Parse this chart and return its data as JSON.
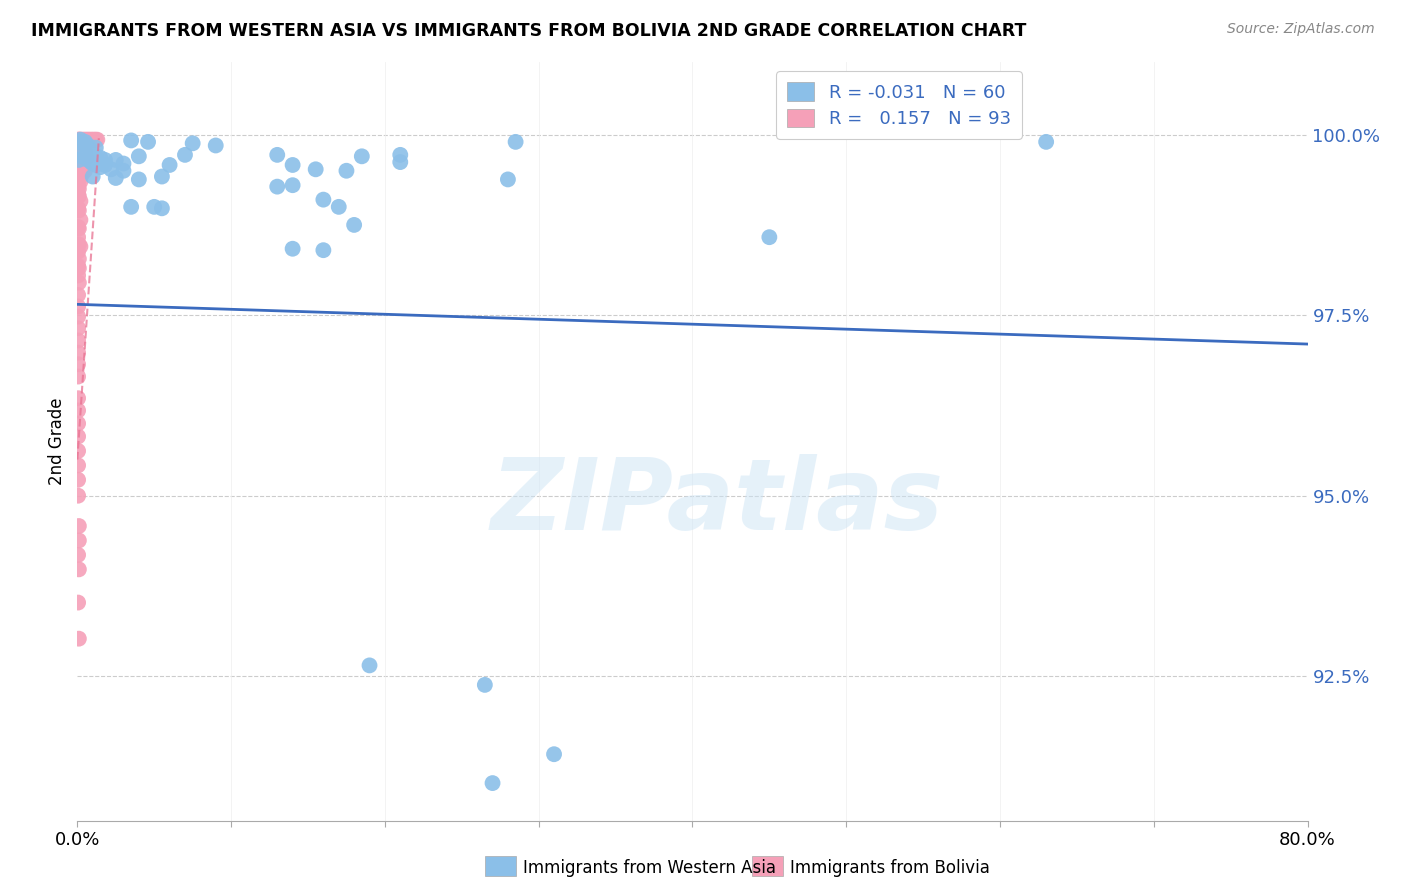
{
  "title": "IMMIGRANTS FROM WESTERN ASIA VS IMMIGRANTS FROM BOLIVIA 2ND GRADE CORRELATION CHART",
  "source": "Source: ZipAtlas.com",
  "ylabel": "2nd Grade",
  "ytick_labels": [
    "92.5%",
    "95.0%",
    "97.5%",
    "100.0%"
  ],
  "ytick_values": [
    0.925,
    0.95,
    0.975,
    1.0
  ],
  "xlim": [
    0.0,
    0.8
  ],
  "ylim": [
    0.905,
    1.01
  ],
  "color_blue": "#8bbfe8",
  "color_pink": "#f5a0b8",
  "trendline_blue_color": "#3b6bbf",
  "trendline_pink_color": "#e87090",
  "watermark_text": "ZIPatlas",
  "blue_points": [
    [
      0.001,
      0.999
    ],
    [
      0.002,
      0.9993
    ],
    [
      0.003,
      0.9988
    ],
    [
      0.005,
      0.999
    ],
    [
      0.007,
      0.9985
    ],
    [
      0.009,
      0.9978
    ],
    [
      0.012,
      0.9982
    ],
    [
      0.035,
      0.9992
    ],
    [
      0.046,
      0.999
    ],
    [
      0.075,
      0.9988
    ],
    [
      0.09,
      0.9985
    ],
    [
      0.285,
      0.999
    ],
    [
      0.63,
      0.999
    ],
    [
      0.001,
      0.9965
    ],
    [
      0.003,
      0.997
    ],
    [
      0.005,
      0.997
    ],
    [
      0.007,
      0.9965
    ],
    [
      0.009,
      0.9962
    ],
    [
      0.012,
      0.997
    ],
    [
      0.015,
      0.9968
    ],
    [
      0.018,
      0.9965
    ],
    [
      0.025,
      0.9965
    ],
    [
      0.03,
      0.996
    ],
    [
      0.04,
      0.997
    ],
    [
      0.01,
      0.996
    ],
    [
      0.012,
      0.9958
    ],
    [
      0.015,
      0.9955
    ],
    [
      0.018,
      0.9958
    ],
    [
      0.022,
      0.9952
    ],
    [
      0.03,
      0.995
    ],
    [
      0.06,
      0.9958
    ],
    [
      0.14,
      0.9958
    ],
    [
      0.155,
      0.9952
    ],
    [
      0.175,
      0.995
    ],
    [
      0.13,
      0.9972
    ],
    [
      0.185,
      0.997
    ],
    [
      0.21,
      0.9972
    ],
    [
      0.21,
      0.9962
    ],
    [
      0.07,
      0.9972
    ],
    [
      0.01,
      0.9942
    ],
    [
      0.025,
      0.994
    ],
    [
      0.04,
      0.9938
    ],
    [
      0.055,
      0.9942
    ],
    [
      0.28,
      0.9938
    ],
    [
      0.035,
      0.99
    ],
    [
      0.05,
      0.99
    ],
    [
      0.055,
      0.9898
    ],
    [
      0.13,
      0.9928
    ],
    [
      0.14,
      0.993
    ],
    [
      0.16,
      0.991
    ],
    [
      0.17,
      0.99
    ],
    [
      0.18,
      0.9875
    ],
    [
      0.14,
      0.9842
    ],
    [
      0.16,
      0.984
    ],
    [
      0.45,
      0.9858
    ],
    [
      0.19,
      0.9265
    ],
    [
      0.265,
      0.9238
    ],
    [
      0.27,
      0.9102
    ],
    [
      0.31,
      0.9142
    ]
  ],
  "pink_points": [
    [
      0.0005,
      0.9993
    ],
    [
      0.001,
      0.9993
    ],
    [
      0.0015,
      0.9993
    ],
    [
      0.002,
      0.9993
    ],
    [
      0.003,
      0.9993
    ],
    [
      0.004,
      0.9993
    ],
    [
      0.005,
      0.9993
    ],
    [
      0.006,
      0.9993
    ],
    [
      0.007,
      0.9993
    ],
    [
      0.008,
      0.9993
    ],
    [
      0.009,
      0.9993
    ],
    [
      0.01,
      0.9993
    ],
    [
      0.011,
      0.9993
    ],
    [
      0.012,
      0.9993
    ],
    [
      0.013,
      0.9993
    ],
    [
      0.001,
      0.9988
    ],
    [
      0.002,
      0.9988
    ],
    [
      0.003,
      0.9985
    ],
    [
      0.004,
      0.9988
    ],
    [
      0.0005,
      0.998
    ],
    [
      0.001,
      0.998
    ],
    [
      0.002,
      0.998
    ],
    [
      0.003,
      0.998
    ],
    [
      0.004,
      0.998
    ],
    [
      0.005,
      0.9978
    ],
    [
      0.0005,
      0.997
    ],
    [
      0.001,
      0.997
    ],
    [
      0.002,
      0.997
    ],
    [
      0.003,
      0.997
    ],
    [
      0.004,
      0.997
    ],
    [
      0.005,
      0.997
    ],
    [
      0.006,
      0.9968
    ],
    [
      0.001,
      0.996
    ],
    [
      0.002,
      0.996
    ],
    [
      0.003,
      0.9958
    ],
    [
      0.004,
      0.9952
    ],
    [
      0.005,
      0.995
    ],
    [
      0.001,
      0.9948
    ],
    [
      0.002,
      0.9948
    ],
    [
      0.003,
      0.9945
    ],
    [
      0.0005,
      0.9938
    ],
    [
      0.001,
      0.9938
    ],
    [
      0.002,
      0.9935
    ],
    [
      0.0005,
      0.9928
    ],
    [
      0.001,
      0.9925
    ],
    [
      0.0005,
      0.9918
    ],
    [
      0.001,
      0.9915
    ],
    [
      0.002,
      0.9908
    ],
    [
      0.0005,
      0.9898
    ],
    [
      0.001,
      0.9895
    ],
    [
      0.002,
      0.9882
    ],
    [
      0.0005,
      0.9872
    ],
    [
      0.001,
      0.987
    ],
    [
      0.0005,
      0.9858
    ],
    [
      0.001,
      0.9848
    ],
    [
      0.002,
      0.9845
    ],
    [
      0.0005,
      0.9838
    ],
    [
      0.001,
      0.9828
    ],
    [
      0.0005,
      0.9818
    ],
    [
      0.001,
      0.9815
    ],
    [
      0.0005,
      0.9805
    ],
    [
      0.001,
      0.9795
    ],
    [
      0.0005,
      0.9778
    ],
    [
      0.0005,
      0.9762
    ],
    [
      0.0005,
      0.9748
    ],
    [
      0.0005,
      0.9732
    ],
    [
      0.0005,
      0.9715
    ],
    [
      0.0005,
      0.9698
    ],
    [
      0.0005,
      0.9682
    ],
    [
      0.0005,
      0.9665
    ],
    [
      0.0005,
      0.9635
    ],
    [
      0.0005,
      0.9618
    ],
    [
      0.0005,
      0.96
    ],
    [
      0.0005,
      0.9582
    ],
    [
      0.0005,
      0.9562
    ],
    [
      0.0005,
      0.9542
    ],
    [
      0.0005,
      0.9522
    ],
    [
      0.0005,
      0.95
    ],
    [
      0.001,
      0.9458
    ],
    [
      0.001,
      0.9438
    ],
    [
      0.0005,
      0.9418
    ],
    [
      0.001,
      0.9398
    ],
    [
      0.0005,
      0.9352
    ],
    [
      0.001,
      0.9302
    ]
  ],
  "blue_trend_x": [
    0.0,
    0.8
  ],
  "blue_trend_y": [
    0.9765,
    0.971
  ],
  "pink_trend_x": [
    0.0,
    0.014
  ],
  "pink_trend_y": [
    0.955,
    0.9995
  ]
}
